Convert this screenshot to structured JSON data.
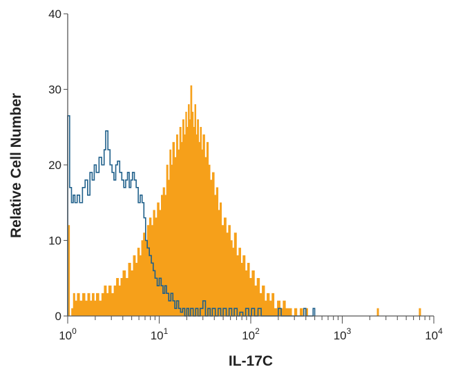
{
  "chart_data": {
    "type": "area",
    "xlabel": "IL-17C",
    "ylabel": "Relative Cell Number",
    "x_scale": "log",
    "xlim": [
      1,
      10000
    ],
    "ylim": [
      0,
      40
    ],
    "grid": false,
    "y_ticks": [
      "0",
      "10",
      "20",
      "30",
      "40"
    ],
    "x_ticks": [
      {
        "base": "10",
        "exp": "0"
      },
      {
        "base": "10",
        "exp": "1"
      },
      {
        "base": "10",
        "exp": "2"
      },
      {
        "base": "10",
        "exp": "3"
      },
      {
        "base": "10",
        "exp": "4"
      }
    ],
    "series": [
      {
        "style": "filled-step",
        "color": "#F6A01A",
        "points": [
          [
            1.0,
            0
          ],
          [
            1.02,
            12
          ],
          [
            1.05,
            0
          ],
          [
            1.1,
            1
          ],
          [
            1.15,
            3
          ],
          [
            1.2,
            2
          ],
          [
            1.27,
            3
          ],
          [
            1.35,
            2
          ],
          [
            1.45,
            3
          ],
          [
            1.55,
            2
          ],
          [
            1.65,
            3
          ],
          [
            1.75,
            2
          ],
          [
            1.85,
            3
          ],
          [
            1.95,
            2
          ],
          [
            2.05,
            3
          ],
          [
            2.2,
            2
          ],
          [
            2.35,
            3
          ],
          [
            2.5,
            4
          ],
          [
            2.65,
            3
          ],
          [
            2.8,
            4
          ],
          [
            3.0,
            3
          ],
          [
            3.2,
            4
          ],
          [
            3.4,
            5
          ],
          [
            3.6,
            4
          ],
          [
            3.8,
            5
          ],
          [
            4.0,
            6
          ],
          [
            4.3,
            5
          ],
          [
            4.6,
            7
          ],
          [
            4.9,
            6
          ],
          [
            5.2,
            8
          ],
          [
            5.5,
            7
          ],
          [
            5.8,
            9
          ],
          [
            6.1,
            8
          ],
          [
            6.4,
            10
          ],
          [
            6.7,
            11
          ],
          [
            7.0,
            10
          ],
          [
            7.4,
            12
          ],
          [
            7.8,
            13
          ],
          [
            8.2,
            12
          ],
          [
            8.6,
            14
          ],
          [
            9.0,
            13
          ],
          [
            9.5,
            15
          ],
          [
            10.0,
            14
          ],
          [
            10.5,
            16
          ],
          [
            11.0,
            17
          ],
          [
            11.5,
            16
          ],
          [
            12.0,
            20
          ],
          [
            12.5,
            18
          ],
          [
            13.0,
            22
          ],
          [
            13.5,
            20
          ],
          [
            14.0,
            23
          ],
          [
            14.7,
            21
          ],
          [
            15.4,
            24
          ],
          [
            16.0,
            22
          ],
          [
            16.7,
            25
          ],
          [
            17.4,
            23
          ],
          [
            18.0,
            26
          ],
          [
            18.7,
            24
          ],
          [
            19.4,
            27
          ],
          [
            20.0,
            25
          ],
          [
            20.7,
            28
          ],
          [
            21.4,
            26
          ],
          [
            22.0,
            30.5
          ],
          [
            22.8,
            27
          ],
          [
            23.6,
            25
          ],
          [
            24.4,
            28
          ],
          [
            25.2,
            24
          ],
          [
            26.0,
            26
          ],
          [
            27.0,
            23
          ],
          [
            28.0,
            25
          ],
          [
            29.0,
            22
          ],
          [
            30.0,
            24
          ],
          [
            31.5,
            21
          ],
          [
            33.0,
            23
          ],
          [
            34.5,
            20
          ],
          [
            36.0,
            18
          ],
          [
            38.0,
            19
          ],
          [
            40.0,
            16
          ],
          [
            42.0,
            17
          ],
          [
            44.0,
            14
          ],
          [
            46.0,
            15
          ],
          [
            48.0,
            12
          ],
          [
            51.0,
            13
          ],
          [
            54.0,
            11
          ],
          [
            57.0,
            12
          ],
          [
            60.0,
            10
          ],
          [
            63.0,
            9
          ],
          [
            66.0,
            11
          ],
          [
            70.0,
            8
          ],
          [
            74.0,
            9
          ],
          [
            78.0,
            7
          ],
          [
            82.0,
            8
          ],
          [
            87.0,
            6
          ],
          [
            92.0,
            7
          ],
          [
            97.0,
            5
          ],
          [
            103.0,
            6
          ],
          [
            110.0,
            4
          ],
          [
            117.0,
            5
          ],
          [
            125.0,
            3
          ],
          [
            133.0,
            4
          ],
          [
            142.0,
            2
          ],
          [
            150.0,
            3
          ],
          [
            160.0,
            2
          ],
          [
            170.0,
            3
          ],
          [
            180.0,
            1
          ],
          [
            195.0,
            2
          ],
          [
            210.0,
            1
          ],
          [
            225.0,
            2
          ],
          [
            240.0,
            1
          ],
          [
            260.0,
            1
          ],
          [
            280.0,
            0
          ],
          [
            300.0,
            1
          ],
          [
            320.0,
            0
          ],
          [
            345.0,
            1
          ],
          [
            370.0,
            0
          ],
          [
            395.0,
            1
          ],
          [
            420.0,
            0
          ],
          [
            2400.0,
            1
          ],
          [
            2500.0,
            0
          ],
          [
            6900.0,
            1
          ],
          [
            7200.0,
            0
          ]
        ]
      },
      {
        "style": "outline-step",
        "color": "#1E5F8A",
        "points": [
          [
            1.0,
            26.5
          ],
          [
            1.05,
            17
          ],
          [
            1.1,
            15
          ],
          [
            1.15,
            16
          ],
          [
            1.2,
            15
          ],
          [
            1.27,
            16
          ],
          [
            1.35,
            15
          ],
          [
            1.45,
            17
          ],
          [
            1.55,
            18
          ],
          [
            1.65,
            16
          ],
          [
            1.75,
            19
          ],
          [
            1.85,
            18
          ],
          [
            1.95,
            20
          ],
          [
            2.05,
            19
          ],
          [
            2.2,
            21
          ],
          [
            2.35,
            20
          ],
          [
            2.5,
            22
          ],
          [
            2.6,
            24.5
          ],
          [
            2.75,
            22
          ],
          [
            2.9,
            20
          ],
          [
            3.05,
            19
          ],
          [
            3.2,
            18
          ],
          [
            3.35,
            20
          ],
          [
            3.5,
            20.5
          ],
          [
            3.7,
            19
          ],
          [
            3.9,
            18
          ],
          [
            4.1,
            17
          ],
          [
            4.3,
            18
          ],
          [
            4.5,
            19
          ],
          [
            4.7,
            17
          ],
          [
            4.9,
            18
          ],
          [
            5.1,
            19
          ],
          [
            5.35,
            18
          ],
          [
            5.6,
            17
          ],
          [
            5.9,
            15
          ],
          [
            6.2,
            16
          ],
          [
            6.5,
            15
          ],
          [
            6.8,
            13
          ],
          [
            7.1,
            10
          ],
          [
            7.4,
            9
          ],
          [
            7.8,
            8
          ],
          [
            8.2,
            7
          ],
          [
            8.6,
            6
          ],
          [
            9.0,
            5
          ],
          [
            9.5,
            4
          ],
          [
            10.0,
            5
          ],
          [
            10.5,
            4
          ],
          [
            11.0,
            3
          ],
          [
            11.5,
            4
          ],
          [
            12.0,
            3
          ],
          [
            12.7,
            2
          ],
          [
            13.4,
            3
          ],
          [
            14.1,
            2
          ],
          [
            14.8,
            1
          ],
          [
            15.5,
            2
          ],
          [
            16.3,
            1
          ],
          [
            17.1,
            0.5
          ],
          [
            18.0,
            1
          ],
          [
            19.0,
            0
          ],
          [
            20.0,
            1
          ],
          [
            21.0,
            0
          ],
          [
            22.0,
            1
          ],
          [
            23.5,
            0
          ],
          [
            25.0,
            1
          ],
          [
            26.5,
            0
          ],
          [
            28.0,
            1
          ],
          [
            30.0,
            2
          ],
          [
            32.0,
            0
          ],
          [
            34.0,
            1
          ],
          [
            36.0,
            0
          ],
          [
            38.0,
            1
          ],
          [
            41.0,
            0
          ],
          [
            44.0,
            1
          ],
          [
            47.0,
            0
          ],
          [
            50.0,
            1
          ],
          [
            54.0,
            0
          ],
          [
            58.0,
            1
          ],
          [
            62.0,
            0
          ],
          [
            66.0,
            1
          ],
          [
            71.0,
            0
          ],
          [
            76.0,
            0.5
          ],
          [
            82.0,
            0
          ],
          [
            88.0,
            1
          ],
          [
            95.0,
            0
          ],
          [
            102.0,
            1
          ],
          [
            110.0,
            0
          ],
          [
            120.0,
            1
          ],
          [
            130.0,
            0
          ],
          [
            200.0,
            1
          ],
          [
            215.0,
            0
          ],
          [
            380.0,
            1
          ],
          [
            400.0,
            0
          ],
          [
            480.0,
            1
          ],
          [
            500.0,
            0
          ]
        ]
      }
    ]
  }
}
